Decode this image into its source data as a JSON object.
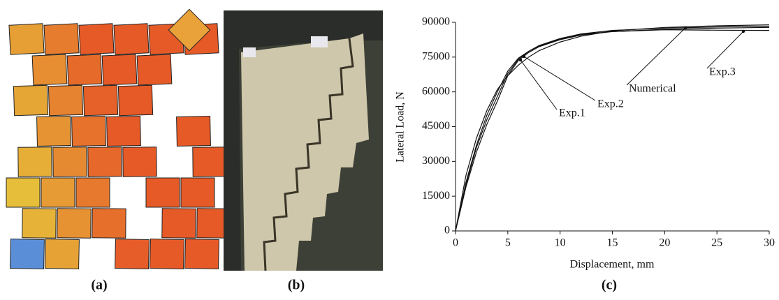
{
  "captions": [
    "(a)",
    "(b)",
    "(c)"
  ],
  "chart_data": {
    "type": "line",
    "xlabel": "Displacement, mm",
    "ylabel": "Lateral Load, N",
    "xlim": [
      0,
      30
    ],
    "ylim": [
      0,
      90000
    ],
    "xticks": [
      0,
      5,
      10,
      15,
      20,
      25,
      30
    ],
    "yticks": [
      0,
      15000,
      30000,
      45000,
      60000,
      75000,
      90000
    ],
    "x": [
      0,
      1,
      2,
      3,
      4,
      5,
      6,
      7,
      8,
      10,
      12,
      15,
      20,
      25,
      30
    ],
    "series": [
      {
        "name": "Exp.1",
        "color": "#111111",
        "values": [
          0,
          19000,
          34000,
          46000,
          56000,
          67000,
          73500,
          77000,
          79500,
          82500,
          84500,
          86000,
          87000,
          87500,
          87800
        ]
      },
      {
        "name": "Exp.2",
        "color": "#111111",
        "values": [
          0,
          21000,
          37000,
          50000,
          60000,
          69000,
          74500,
          77500,
          80000,
          83000,
          85000,
          86500,
          87500,
          88000,
          88300
        ]
      },
      {
        "name": "Numerical",
        "color": "#111111",
        "values": [
          0,
          24000,
          40000,
          52000,
          61000,
          67000,
          71500,
          75000,
          77800,
          81500,
          84000,
          86300,
          87800,
          88500,
          88900
        ]
      },
      {
        "name": "Exp.3",
        "color": "#111111",
        "values": [
          0,
          20000,
          36000,
          48000,
          58000,
          68000,
          74000,
          77500,
          79800,
          82800,
          84800,
          86000,
          86800,
          86600,
          86500
        ]
      }
    ]
  }
}
